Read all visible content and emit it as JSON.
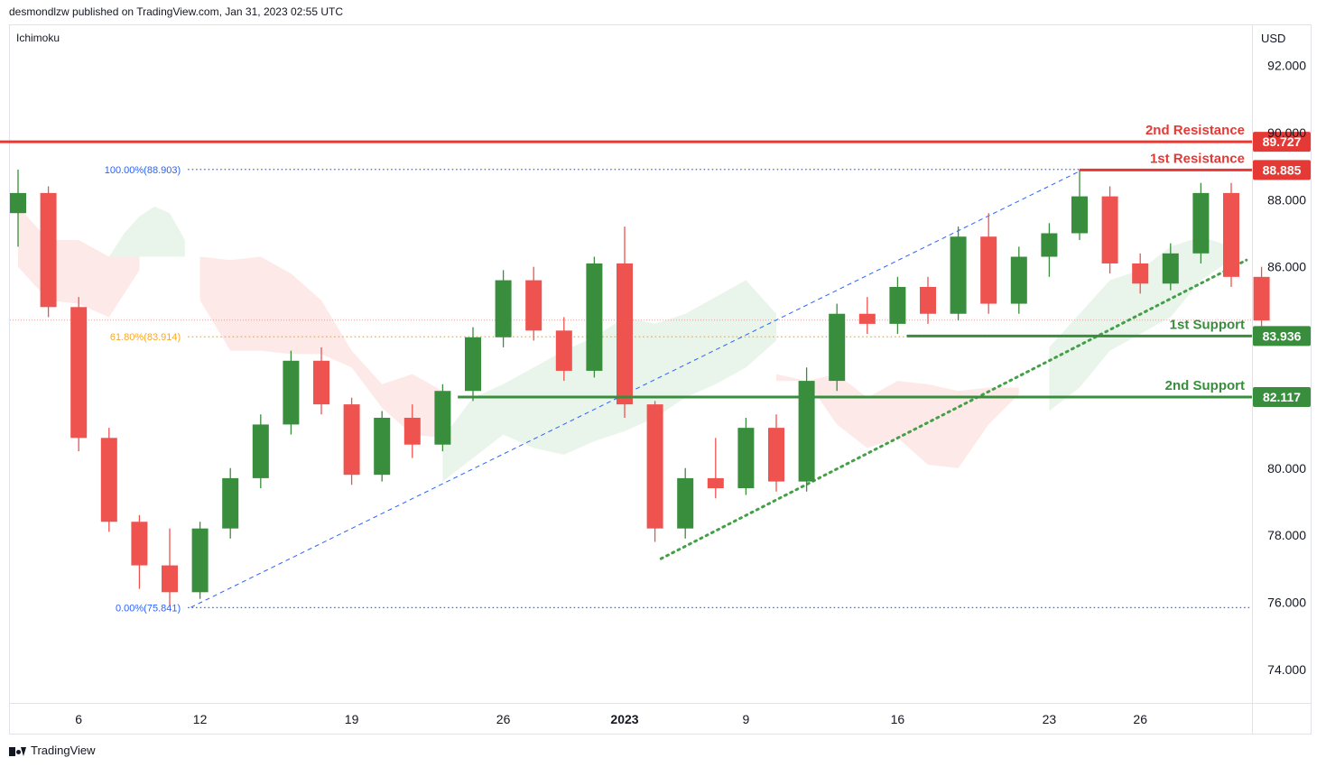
{
  "header": {
    "published": "desmondlzw published on TradingView.com, Jan 31, 2023 02:55 UTC"
  },
  "footer": {
    "brand": "TradingView",
    "logo_icon": "tradingview-logo-icon"
  },
  "chart_data": {
    "type": "candlestick",
    "indicator_label": "Ichimoku",
    "currency": "USD",
    "ylim": [
      73,
      93.2
    ],
    "y_ticks": [
      74,
      76,
      78,
      80,
      86,
      88,
      90,
      92
    ],
    "y_tick_labels": [
      "74.000",
      "76.000",
      "78.000",
      "80.000",
      "86.000",
      "88.000",
      "90.000",
      "92.000"
    ],
    "x_ticks": [
      {
        "label": "6",
        "bar": 2
      },
      {
        "label": "12",
        "bar": 6
      },
      {
        "label": "19",
        "bar": 11
      },
      {
        "label": "26",
        "bar": 16
      },
      {
        "label": "2023",
        "bar": 20,
        "bold": true
      },
      {
        "label": "9",
        "bar": 24
      },
      {
        "label": "16",
        "bar": 29
      },
      {
        "label": "23",
        "bar": 34
      },
      {
        "label": "26",
        "bar": 37
      }
    ],
    "colors": {
      "up": "#26a69a",
      "bull": "#388e3c",
      "bear": "#ef5350",
      "resistance": "#e53935",
      "support": "#388e3c",
      "fib": "#2962ff",
      "fib_mid": "#f9a825"
    },
    "candles": [
      [
        87.6,
        88.9,
        86.6,
        88.2
      ],
      [
        88.2,
        88.4,
        84.5,
        84.8
      ],
      [
        84.8,
        85.1,
        80.5,
        80.9
      ],
      [
        80.9,
        81.2,
        78.1,
        78.4
      ],
      [
        78.4,
        78.6,
        76.4,
        77.1
      ],
      [
        77.1,
        78.2,
        75.9,
        76.3
      ],
      [
        76.3,
        78.4,
        76.1,
        78.2
      ],
      [
        78.2,
        80.0,
        77.9,
        79.7
      ],
      [
        79.7,
        81.6,
        79.4,
        81.3
      ],
      [
        81.3,
        83.5,
        81.0,
        83.2
      ],
      [
        83.2,
        83.6,
        81.6,
        81.9
      ],
      [
        81.9,
        82.1,
        79.5,
        79.8
      ],
      [
        79.8,
        81.7,
        79.6,
        81.5
      ],
      [
        81.5,
        81.9,
        80.3,
        80.7
      ],
      [
        80.7,
        82.5,
        80.5,
        82.3
      ],
      [
        82.3,
        84.2,
        82.0,
        83.9
      ],
      [
        83.9,
        85.9,
        83.6,
        85.6
      ],
      [
        85.6,
        86.0,
        83.8,
        84.1
      ],
      [
        84.1,
        84.5,
        82.6,
        82.9
      ],
      [
        82.9,
        86.3,
        82.7,
        86.1
      ],
      [
        86.1,
        87.2,
        81.5,
        81.9
      ],
      [
        81.9,
        82.0,
        77.8,
        78.2
      ],
      [
        78.2,
        80.0,
        77.9,
        79.7
      ],
      [
        79.7,
        80.9,
        79.1,
        79.4
      ],
      [
        79.4,
        81.5,
        79.2,
        81.2
      ],
      [
        81.2,
        81.6,
        79.3,
        79.6
      ],
      [
        79.6,
        83.0,
        79.3,
        82.6
      ],
      [
        82.6,
        84.9,
        82.3,
        84.6
      ],
      [
        84.6,
        85.1,
        84.0,
        84.3
      ],
      [
        84.3,
        85.7,
        84.0,
        85.4
      ],
      [
        85.4,
        85.7,
        84.3,
        84.6
      ],
      [
        84.6,
        87.2,
        84.4,
        86.9
      ],
      [
        86.9,
        87.6,
        84.6,
        84.9
      ],
      [
        84.9,
        86.6,
        84.6,
        86.3
      ],
      [
        86.3,
        87.3,
        85.7,
        87.0
      ],
      [
        87.0,
        88.9,
        86.8,
        88.1
      ],
      [
        88.1,
        88.4,
        85.8,
        86.1
      ],
      [
        86.1,
        86.4,
        85.2,
        85.5
      ],
      [
        85.5,
        86.7,
        85.3,
        86.4
      ],
      [
        86.4,
        88.5,
        86.1,
        88.2
      ],
      [
        88.2,
        88.5,
        85.4,
        85.7
      ],
      [
        85.7,
        86.0,
        84.2,
        84.4
      ]
    ],
    "cloud_bull": [
      [
        3,
        86.3,
        86.3
      ],
      [
        3.5,
        87.0,
        86.3
      ],
      [
        4,
        87.5,
        86.3
      ],
      [
        4.5,
        87.8,
        86.3
      ],
      [
        5,
        87.6,
        86.3
      ],
      [
        5.5,
        86.8,
        86.3
      ],
      [
        14,
        79.6,
        80.9
      ],
      [
        15,
        80.3,
        82.1
      ],
      [
        16,
        81.0,
        82.5
      ],
      [
        17,
        80.6,
        83.0
      ],
      [
        18,
        80.4,
        83.5
      ],
      [
        19,
        80.8,
        83.9
      ],
      [
        20,
        81.1,
        84.5
      ],
      [
        21,
        81.5,
        84.3
      ],
      [
        22,
        82.1,
        84.6
      ],
      [
        23,
        82.5,
        85.1
      ],
      [
        24,
        83.0,
        85.6
      ],
      [
        25,
        83.8,
        84.6
      ],
      [
        34,
        81.7,
        83.6
      ],
      [
        35,
        82.4,
        84.6
      ],
      [
        36,
        83.5,
        85.6
      ],
      [
        37,
        84.0,
        85.9
      ],
      [
        38,
        84.5,
        86.6
      ],
      [
        39,
        85.6,
        86.9
      ],
      [
        40,
        86.2,
        86.6
      ]
    ],
    "cloud_bear": [
      [
        0,
        87.8,
        86.0
      ],
      [
        1,
        86.8,
        85.0
      ],
      [
        2,
        86.8,
        84.9
      ],
      [
        3,
        86.3,
        84.5
      ],
      [
        4,
        86.3,
        85.9
      ],
      [
        6,
        85.0,
        86.3
      ],
      [
        7,
        83.5,
        86.2
      ],
      [
        8,
        83.5,
        86.3
      ],
      [
        9,
        83.4,
        85.8
      ],
      [
        10,
        83.4,
        85.0
      ],
      [
        11,
        83.0,
        83.5
      ],
      [
        12,
        82.5,
        81.8
      ],
      [
        13,
        82.8,
        81.0
      ],
      [
        14,
        82.3,
        80.9
      ],
      [
        25,
        82.6,
        82.8
      ],
      [
        26,
        82.6,
        82.6
      ],
      [
        27,
        82.8,
        81.3
      ],
      [
        28,
        82.1,
        80.6
      ],
      [
        29,
        82.6,
        80.9
      ],
      [
        30,
        82.5,
        80.1
      ],
      [
        31,
        82.3,
        80.0
      ],
      [
        32,
        82.4,
        81.3
      ],
      [
        33,
        82.4,
        82.2
      ]
    ],
    "levels": [
      {
        "name": "2nd Resistance",
        "value": 89.727,
        "label": "89.727",
        "color": "#e53935",
        "start_bar": -0.7
      },
      {
        "name": "1st Resistance",
        "value": 88.885,
        "label": "88.885",
        "color": "#e53935",
        "start_bar": 35
      },
      {
        "name": "1st Support",
        "value": 83.936,
        "label": "83.936",
        "color": "#388e3c",
        "start_bar": 29.3
      },
      {
        "name": "2nd Support",
        "value": 82.117,
        "label": "82.117",
        "color": "#388e3c",
        "start_bar": 14.5
      }
    ],
    "fib": [
      {
        "label": "100.00%(88.903)",
        "value": 88.903,
        "color": "#2962ff"
      },
      {
        "label": "61.80%(83.914)",
        "value": 83.914,
        "color": "#f9a825"
      },
      {
        "label": "0.00%(75.841)",
        "value": 75.841,
        "color": "#2962ff"
      }
    ],
    "fib_start_bar": 5.6,
    "fib_end_bar": 35,
    "fib_diagonal": [
      [
        5.7,
        75.85
      ],
      [
        35.0,
        88.85
      ]
    ],
    "trendline": [
      [
        21.2,
        77.3
      ],
      [
        40.5,
        86.2
      ]
    ],
    "current_price": 84.41
  }
}
